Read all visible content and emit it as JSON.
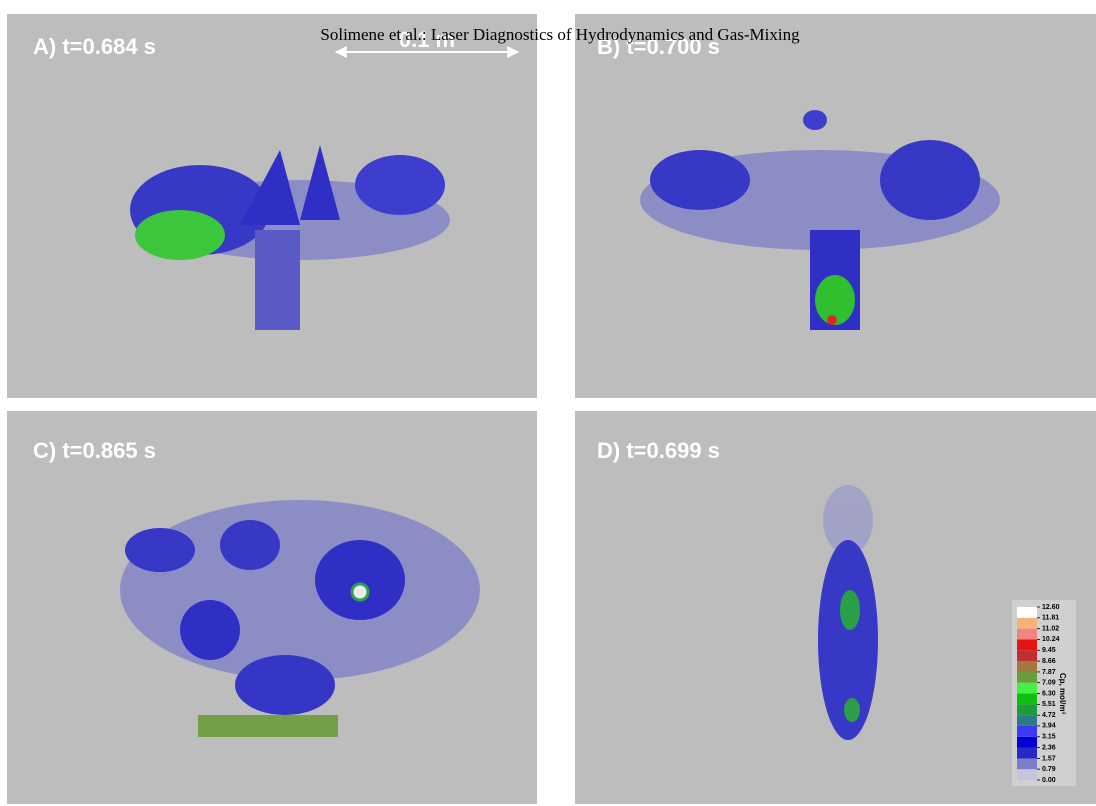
{
  "header": {
    "title": "Solimene et al.: Laser Diagnostics of Hydrodynamics and Gas-Mixing"
  },
  "panels": [
    {
      "label": "A) t=0.684 s"
    },
    {
      "label": "B) t=0.700 s"
    },
    {
      "label": "C) t=0.865 s"
    },
    {
      "label": "D) t=0.699 s"
    }
  ],
  "scale_bar": {
    "label": "0.1 m"
  },
  "colorbar": {
    "label": "Cp, mol/m³",
    "ticks": [
      {
        "value": 0,
        "label": "0.00"
      },
      0.79,
      1.57,
      2.36,
      3.15,
      3.94,
      4.72,
      5.51,
      {
        "value": 6.3,
        "label": "6.30"
      },
      7.09,
      7.87,
      8.66,
      9.45,
      10.24,
      11.02,
      11.81,
      {
        "value": 12.6,
        "label": "12.60"
      }
    ],
    "colors": [
      "#c4c4da",
      "#7c7cc8",
      "#2828c4",
      "#0000d4",
      "#3c3cf4",
      "#2e7a8a",
      "#1c9c3c",
      "#10c010",
      "#44f044",
      "#6a9c3c",
      "#a07840",
      "#c03030",
      "#e41414",
      "#f08484",
      "#f4b478",
      "#ffffff"
    ]
  }
}
